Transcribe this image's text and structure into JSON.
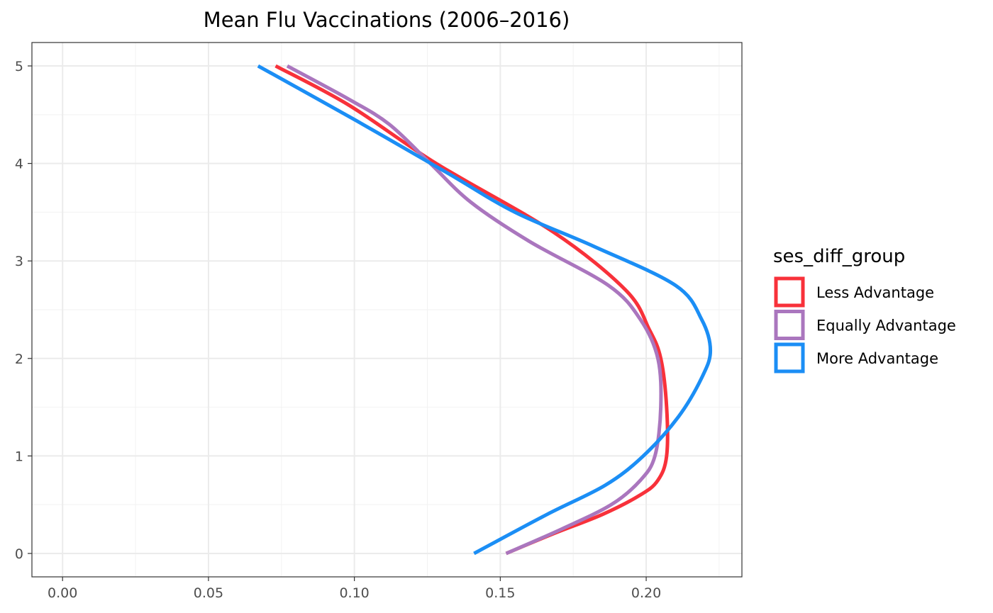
{
  "chart_data": {
    "type": "line",
    "title": "Mean Flu Vaccinations (2006–2016)",
    "xlabel": "",
    "ylabel": "",
    "xlim": [
      -0.0105,
      0.2328
    ],
    "ylim": [
      -0.24,
      5.24
    ],
    "x_ticks": [
      0.0,
      0.05,
      0.1,
      0.15,
      0.2
    ],
    "x_tick_labels": [
      "0.00",
      "0.05",
      "0.10",
      "0.15",
      "0.20"
    ],
    "y_ticks": [
      0,
      1,
      2,
      3,
      4,
      5
    ],
    "y_tick_labels": [
      "0",
      "1",
      "2",
      "3",
      "4",
      "5"
    ],
    "grid": true,
    "legend": {
      "title": "ses_diff_group",
      "position": "right"
    },
    "series": [
      {
        "name": "Less Advantage",
        "color": "#f8313a",
        "points": [
          [
            0.073,
            5.0
          ],
          [
            0.098,
            4.6
          ],
          [
            0.128,
            4.0
          ],
          [
            0.168,
            3.3
          ],
          [
            0.193,
            2.7
          ],
          [
            0.201,
            2.3
          ],
          [
            0.205,
            2.0
          ],
          [
            0.207,
            1.5
          ],
          [
            0.207,
            1.0
          ],
          [
            0.204,
            0.75
          ],
          [
            0.198,
            0.6
          ],
          [
            0.185,
            0.4
          ],
          [
            0.168,
            0.2
          ],
          [
            0.152,
            0.0
          ]
        ]
      },
      {
        "name": "Equally Advantage",
        "color": "#aa76be",
        "points": [
          [
            0.077,
            5.0
          ],
          [
            0.098,
            4.66
          ],
          [
            0.112,
            4.4
          ],
          [
            0.126,
            4.0
          ],
          [
            0.14,
            3.6
          ],
          [
            0.16,
            3.2
          ],
          [
            0.187,
            2.75
          ],
          [
            0.198,
            2.4
          ],
          [
            0.204,
            2.0
          ],
          [
            0.205,
            1.5
          ],
          [
            0.203,
            1.0
          ],
          [
            0.198,
            0.75
          ],
          [
            0.188,
            0.5
          ],
          [
            0.171,
            0.25
          ],
          [
            0.152,
            0.0
          ]
        ]
      },
      {
        "name": "More Advantage",
        "color": "#1b8ef5",
        "points": [
          [
            0.067,
            5.0
          ],
          [
            0.1,
            4.45
          ],
          [
            0.132,
            3.9
          ],
          [
            0.155,
            3.5
          ],
          [
            0.182,
            3.15
          ],
          [
            0.21,
            2.75
          ],
          [
            0.219,
            2.4
          ],
          [
            0.222,
            2.08
          ],
          [
            0.219,
            1.8
          ],
          [
            0.211,
            1.4
          ],
          [
            0.199,
            1.0
          ],
          [
            0.186,
            0.7
          ],
          [
            0.166,
            0.4
          ],
          [
            0.141,
            0.0
          ]
        ]
      }
    ]
  }
}
